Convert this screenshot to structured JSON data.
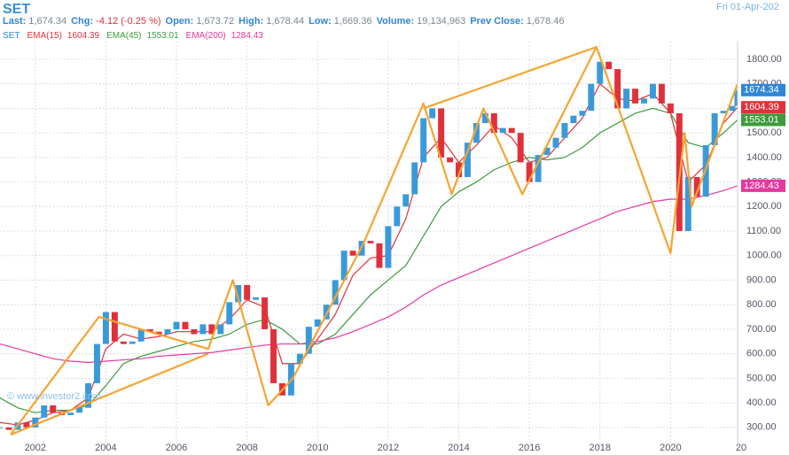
{
  "header": {
    "symbol": "SET",
    "date": "Fri 01-Apr-202",
    "stats": [
      {
        "label": "Last:",
        "value": "1,674.34"
      },
      {
        "label": "Chg:",
        "value": "-4.12 (-0.25 %)"
      },
      {
        "label": "Open:",
        "value": "1,673.72"
      },
      {
        "label": "High:",
        "value": "1,678.44"
      },
      {
        "label": "Low:",
        "value": "1,669.36"
      },
      {
        "label": "Volume:",
        "value": "19,134,963"
      },
      {
        "label": "Prev Close:",
        "value": "1,678.46"
      }
    ],
    "watermark": "© www.investor2.com"
  },
  "chart_data": {
    "type": "candlestick",
    "xlim": [
      2001.0,
      2021.9
    ],
    "ylim": [
      220,
      1872
    ],
    "xticks": [
      2002,
      2004,
      2006,
      2008,
      2010,
      2012,
      2014,
      2016,
      2018,
      2020,
      {
        "value": 2022,
        "label": "20"
      }
    ],
    "yticks": [
      {
        "value": 300,
        "label": "300.00"
      },
      {
        "value": 400,
        "label": "400.00"
      },
      {
        "value": 500,
        "label": "500.00"
      },
      {
        "value": 600,
        "label": "600.00"
      },
      {
        "value": 700,
        "label": "700.00"
      },
      {
        "value": 800,
        "label": "800.00"
      },
      {
        "value": 900,
        "label": "900.00"
      },
      {
        "value": 1000,
        "label": "1000.00"
      },
      {
        "value": 1100,
        "label": "1100.00"
      },
      {
        "value": 1200,
        "label": "1200.00"
      },
      {
        "value": 1300,
        "label": "1300.00"
      },
      {
        "value": 1400,
        "label": "1400.00"
      },
      {
        "value": 1500,
        "label": "1500.00"
      },
      {
        "value": 1600,
        "label": "1600.00"
      },
      {
        "value": 1700,
        "label": "1700.00"
      },
      {
        "value": 1800,
        "label": "1800.00"
      }
    ],
    "grid": true,
    "up_color": "#3a9ad9",
    "down_color": "#e0313b",
    "series": [
      {
        "name": "SET",
        "color": "#2f86d6",
        "x": [
          2001,
          2001.25,
          2001.5,
          2001.75,
          2002,
          2002.25,
          2002.5,
          2002.75,
          2003,
          2003.25,
          2003.5,
          2003.75,
          2004,
          2004.25,
          2004.5,
          2004.75,
          2005,
          2005.25,
          2005.5,
          2005.75,
          2006,
          2006.25,
          2006.5,
          2006.75,
          2007,
          2007.25,
          2007.5,
          2007.75,
          2008,
          2008.25,
          2008.5,
          2008.75,
          2009,
          2009.25,
          2009.5,
          2009.75,
          2010,
          2010.25,
          2010.5,
          2010.75,
          2011,
          2011.25,
          2011.5,
          2011.75,
          2012,
          2012.25,
          2012.5,
          2012.75,
          2013,
          2013.25,
          2013.5,
          2013.75,
          2014,
          2014.25,
          2014.5,
          2014.75,
          2015,
          2015.25,
          2015.5,
          2015.75,
          2016,
          2016.25,
          2016.5,
          2016.75,
          2017,
          2017.25,
          2017.5,
          2017.75,
          2018,
          2018.25,
          2018.5,
          2018.75,
          2019,
          2019.25,
          2019.5,
          2019.75,
          2020,
          2020.25,
          2020.5,
          2020.75,
          2021,
          2021.25,
          2021.5,
          2021.75,
          2021.9
        ],
        "values": [
          300,
          290,
          320,
          300,
          340,
          390,
          360,
          350,
          360,
          380,
          480,
          640,
          770,
          650,
          640,
          650,
          700,
          690,
          680,
          700,
          730,
          700,
          680,
          720,
          680,
          720,
          810,
          880,
          820,
          830,
          700,
          480,
          430,
          560,
          600,
          710,
          740,
          800,
          900,
          1020,
          1000,
          1060,
          1050,
          950,
          1120,
          1200,
          1250,
          1380,
          1560,
          1600,
          1400,
          1380,
          1320,
          1460,
          1540,
          1580,
          1500,
          1520,
          1500,
          1380,
          1300,
          1410,
          1440,
          1480,
          1540,
          1570,
          1590,
          1700,
          1790,
          1760,
          1600,
          1680,
          1620,
          1640,
          1700,
          1620,
          1580,
          1100,
          1320,
          1240,
          1450,
          1580,
          1590,
          1610,
          1674.34
        ]
      },
      {
        "name": "EMA(15)",
        "color": "#e0313b",
        "x": [
          2001,
          2001.5,
          2002,
          2002.5,
          2003,
          2003.5,
          2004,
          2004.5,
          2005,
          2005.5,
          2006,
          2006.5,
          2007,
          2007.5,
          2008,
          2008.5,
          2009,
          2009.5,
          2010,
          2010.5,
          2011,
          2011.5,
          2012,
          2012.5,
          2013,
          2013.5,
          2014,
          2014.5,
          2015,
          2015.5,
          2016,
          2016.5,
          2017,
          2017.5,
          2018,
          2018.5,
          2019,
          2019.5,
          2020,
          2020.5,
          2021,
          2021.5,
          2021.9
        ],
        "values": [
          320,
          310,
          330,
          360,
          370,
          420,
          620,
          680,
          660,
          670,
          690,
          690,
          690,
          740,
          820,
          790,
          560,
          560,
          660,
          760,
          920,
          990,
          1000,
          1150,
          1400,
          1480,
          1380,
          1450,
          1530,
          1480,
          1380,
          1400,
          1480,
          1560,
          1700,
          1640,
          1630,
          1660,
          1580,
          1300,
          1370,
          1540,
          1604.39
        ]
      },
      {
        "name": "EMA(45)",
        "color": "#3d9a3d",
        "x": [
          2001,
          2001.5,
          2002,
          2002.5,
          2003,
          2003.5,
          2004,
          2004.5,
          2005,
          2005.5,
          2006,
          2006.5,
          2007,
          2007.5,
          2008,
          2008.5,
          2009,
          2009.5,
          2010,
          2010.5,
          2011,
          2011.5,
          2012,
          2012.5,
          2013,
          2013.5,
          2014,
          2014.5,
          2015,
          2015.5,
          2016,
          2016.5,
          2017,
          2017.5,
          2018,
          2018.5,
          2019,
          2019.5,
          2020,
          2020.5,
          2021,
          2021.5,
          2021.9
        ],
        "values": [
          420,
          380,
          360,
          370,
          370,
          390,
          470,
          560,
          590,
          610,
          630,
          650,
          660,
          680,
          720,
          740,
          700,
          640,
          640,
          680,
          760,
          840,
          900,
          960,
          1080,
          1200,
          1260,
          1300,
          1350,
          1380,
          1400,
          1390,
          1400,
          1440,
          1500,
          1540,
          1580,
          1600,
          1580,
          1460,
          1440,
          1500,
          1553.01
        ]
      },
      {
        "name": "EMA(200)",
        "color": "#e6389e",
        "x": [
          2001,
          2001.5,
          2002,
          2002.5,
          2003,
          2003.5,
          2004,
          2004.5,
          2005,
          2005.5,
          2006,
          2006.5,
          2007,
          2007.5,
          2008,
          2008.5,
          2009,
          2009.5,
          2010,
          2010.5,
          2011,
          2011.5,
          2012,
          2012.5,
          2013,
          2013.5,
          2014,
          2014.5,
          2015,
          2015.5,
          2016,
          2016.5,
          2017,
          2017.5,
          2018,
          2018.5,
          2019,
          2019.5,
          2020,
          2020.5,
          2021,
          2021.5,
          2021.9
        ],
        "values": [
          640,
          620,
          600,
          580,
          570,
          565,
          570,
          575,
          580,
          590,
          595,
          600,
          605,
          615,
          625,
          635,
          640,
          640,
          650,
          665,
          690,
          720,
          750,
          790,
          840,
          880,
          910,
          940,
          970,
          1000,
          1030,
          1060,
          1090,
          1120,
          1150,
          1180,
          1200,
          1220,
          1230,
          1230,
          1245,
          1265,
          1284.43
        ]
      }
    ],
    "pattern_color": "#f5a431",
    "patterns": [
      {
        "x": [
          2001.3,
          2003.8,
          2006.9,
          2007.6,
          2008.6,
          2009.3,
          2011.3,
          2013.0,
          2013.8,
          2014.7,
          2015.8,
          2017.9,
          2020.0,
          2020.4,
          2020.6,
          2021.9
        ],
        "y": [
          270,
          750,
          620,
          900,
          390,
          500,
          1050,
          1620,
          1250,
          1600,
          1250,
          1850,
          1010,
          1500,
          1200,
          1700
        ]
      },
      {
        "x": [
          2001.3,
          2006.9
        ],
        "y": [
          270,
          600
        ]
      },
      {
        "x": [
          2013.0,
          2017.9
        ],
        "y": [
          1600,
          1850
        ]
      }
    ]
  }
}
